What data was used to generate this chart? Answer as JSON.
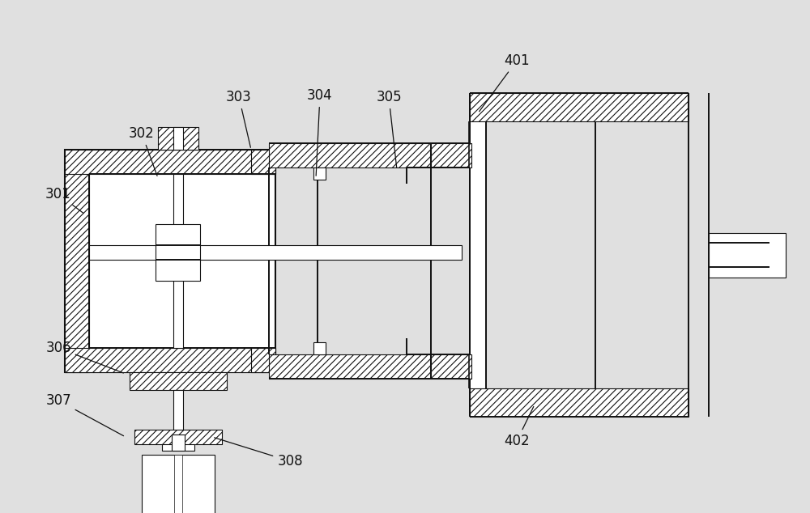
{
  "bg_color": "#e0e0e0",
  "line_color": "#111111",
  "label_fontsize": 12,
  "figsize": [
    10.0,
    6.34
  ],
  "dpi": 100
}
